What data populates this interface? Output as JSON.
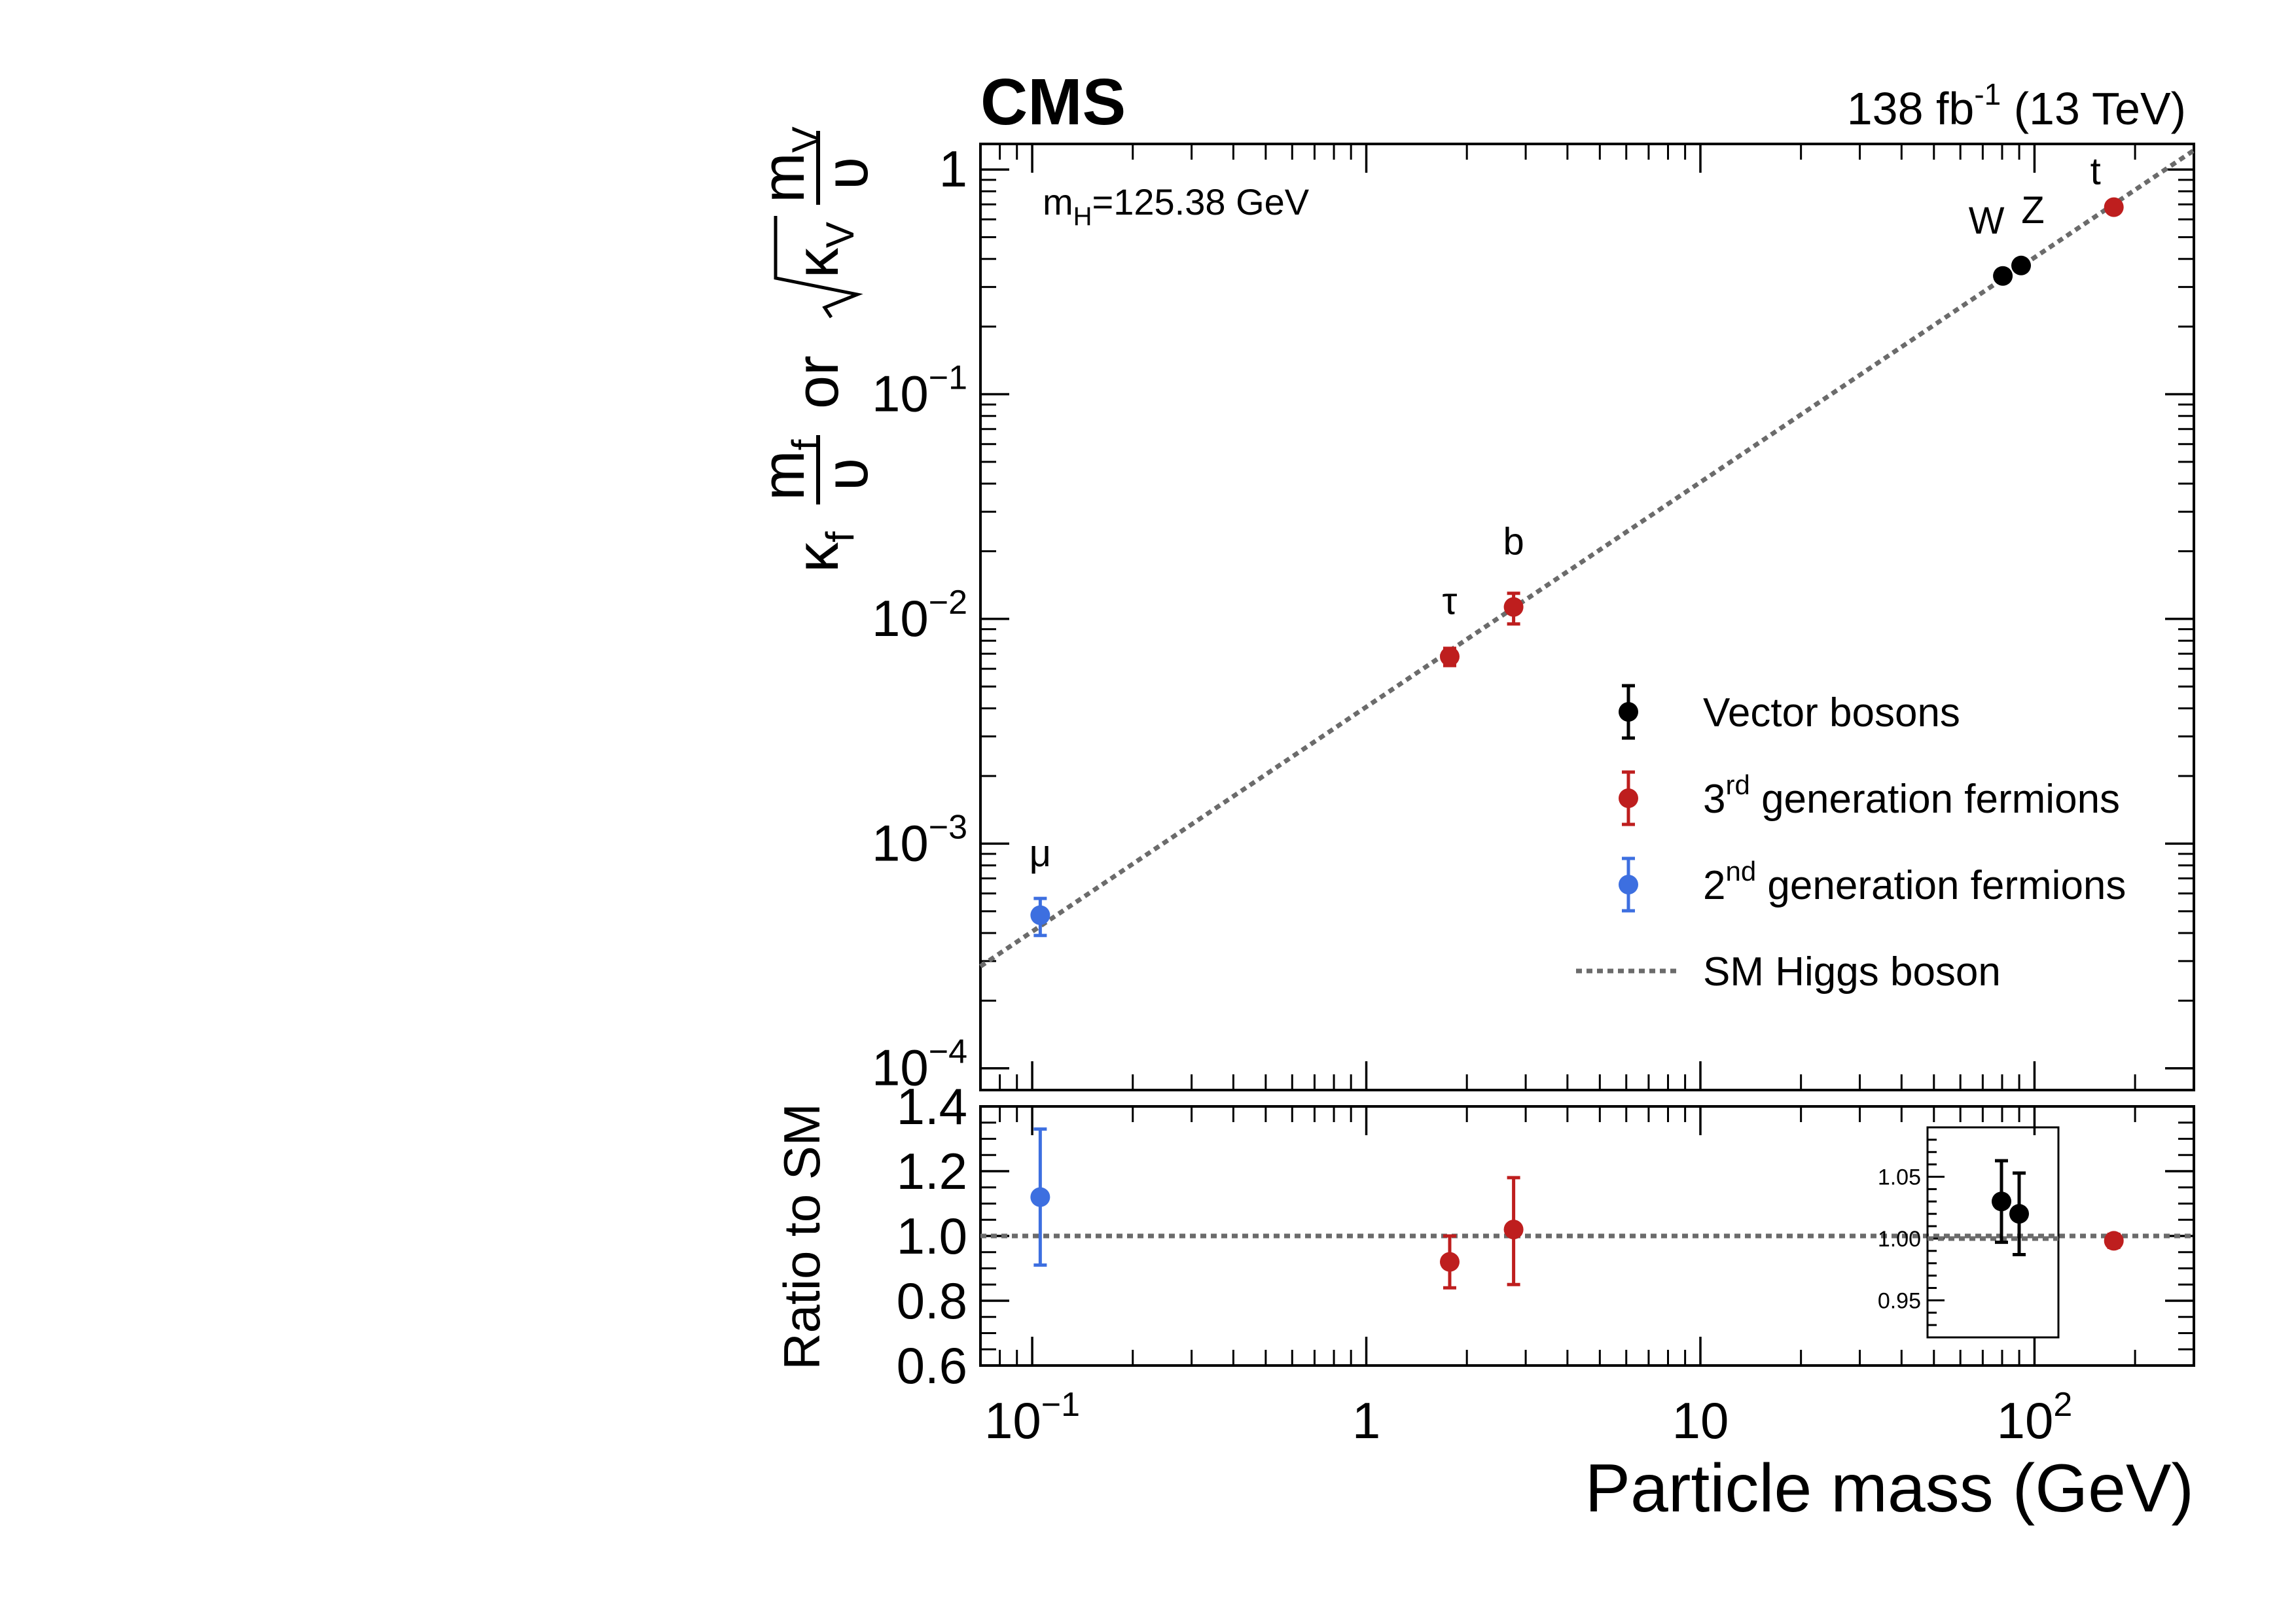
{
  "header": {
    "experiment": "CMS",
    "lumi_value": "138 fb",
    "lumi_exp": "-1",
    "energy": "(13 TeV)"
  },
  "annotation": {
    "mass_sub": "H",
    "mass_value": "=125.38 GeV"
  },
  "y_axis_label": {
    "kappa_f": "κ",
    "sub_f": "f",
    "m_f": "m",
    "m_f_sub": "f",
    "v_f": "υ",
    "or": "or",
    "sqrt_kappa_v": "κ",
    "sub_v": "V",
    "m_v": "m",
    "m_v_sub": "V",
    "v_v": "υ"
  },
  "ratio_label": "Ratio to SM",
  "x_label": "Particle mass (GeV)",
  "colors": {
    "vector": "#000000",
    "third_gen": "#be1e1e",
    "second_gen": "#3d6fe0",
    "sm_line": "#6b6b6b"
  },
  "chart_data": [
    {
      "type": "scatter",
      "panel": "main",
      "x_scale": "log",
      "y_scale": "log",
      "xlim": [
        0.07,
        300
      ],
      "ylim": [
        8e-05,
        1.3
      ],
      "x_ticks": [
        {
          "value": 0.1,
          "base": "10",
          "exp": "−1"
        },
        {
          "value": 1,
          "base": "1",
          "exp": ""
        },
        {
          "value": 10,
          "base": "10",
          "exp": ""
        },
        {
          "value": 100,
          "base": "10",
          "exp": "2"
        }
      ],
      "y_ticks": [
        {
          "value": 1,
          "base": "1",
          "exp": ""
        },
        {
          "value": 0.1,
          "base": "10",
          "exp": "−1"
        },
        {
          "value": 0.01,
          "base": "10",
          "exp": "−2"
        },
        {
          "value": 0.001,
          "base": "10",
          "exp": "−3"
        },
        {
          "value": 0.0001,
          "base": "10",
          "exp": "−4"
        }
      ],
      "points": [
        {
          "label": "μ",
          "x": 0.1057,
          "y": 0.00048,
          "err_up": 9e-05,
          "err_down": 9e-05,
          "group": "second_gen"
        },
        {
          "label": "τ",
          "x": 1.777,
          "y": 0.0068,
          "err_up": 0.0006,
          "err_down": 0.0006,
          "group": "third_gen"
        },
        {
          "label": "b",
          "x": 2.76,
          "y": 0.0113,
          "err_up": 0.0017,
          "err_down": 0.0018,
          "group": "third_gen"
        },
        {
          "label": "W",
          "x": 80.4,
          "y": 0.336,
          "err_up": 0.01,
          "err_down": 0.01,
          "group": "vector"
        },
        {
          "label": "Z",
          "x": 91.19,
          "y": 0.374,
          "err_up": 0.01,
          "err_down": 0.01,
          "group": "vector"
        },
        {
          "label": "t",
          "x": 172.8,
          "y": 0.68,
          "err_up": 0.03,
          "err_down": 0.03,
          "group": "third_gen"
        }
      ],
      "sm_line": {
        "name": "SM Higgs boson",
        "slope_per_gev": 0.00406
      },
      "legend": {
        "placement": "center-right",
        "entries": [
          {
            "group": "vector",
            "label": "Vector bosons",
            "sup": "",
            "prefix": ""
          },
          {
            "group": "third_gen",
            "label": " generation fermions",
            "sup": "rd",
            "prefix": "3"
          },
          {
            "group": "second_gen",
            "label": " generation fermions",
            "sup": "nd",
            "prefix": "2"
          },
          {
            "group": "sm_line",
            "label": "SM Higgs boson",
            "sup": "",
            "prefix": ""
          }
        ]
      }
    },
    {
      "type": "scatter",
      "panel": "ratio",
      "x_scale": "log",
      "xlim": [
        0.07,
        300
      ],
      "ylim": [
        0.6,
        1.4
      ],
      "y_ticks": [
        "0.6",
        "0.8",
        "1.0",
        "1.2",
        "1.4"
      ],
      "reference": 1.0,
      "points": [
        {
          "label": "μ",
          "x": 0.1057,
          "y": 1.12,
          "err_up": 0.21,
          "err_down": 0.21,
          "group": "second_gen"
        },
        {
          "label": "τ",
          "x": 1.777,
          "y": 0.92,
          "err_up": 0.08,
          "err_down": 0.08,
          "group": "third_gen"
        },
        {
          "label": "b",
          "x": 2.76,
          "y": 1.02,
          "err_up": 0.16,
          "err_down": 0.17,
          "group": "third_gen"
        },
        {
          "label": "t",
          "x": 172.8,
          "y": 0.985,
          "err_up": 0.02,
          "err_down": 0.02,
          "group": "third_gen"
        }
      ]
    },
    {
      "type": "scatter",
      "panel": "inset",
      "ylim": [
        0.92,
        1.09
      ],
      "y_ticks": [
        "0.95",
        "1.00",
        "1.05"
      ],
      "reference": 1.0,
      "points": [
        {
          "label": "W",
          "y": 1.03,
          "err_up": 0.033,
          "err_down": 0.033,
          "group": "vector"
        },
        {
          "label": "Z",
          "y": 1.02,
          "err_up": 0.033,
          "err_down": 0.033,
          "group": "vector"
        }
      ]
    }
  ]
}
